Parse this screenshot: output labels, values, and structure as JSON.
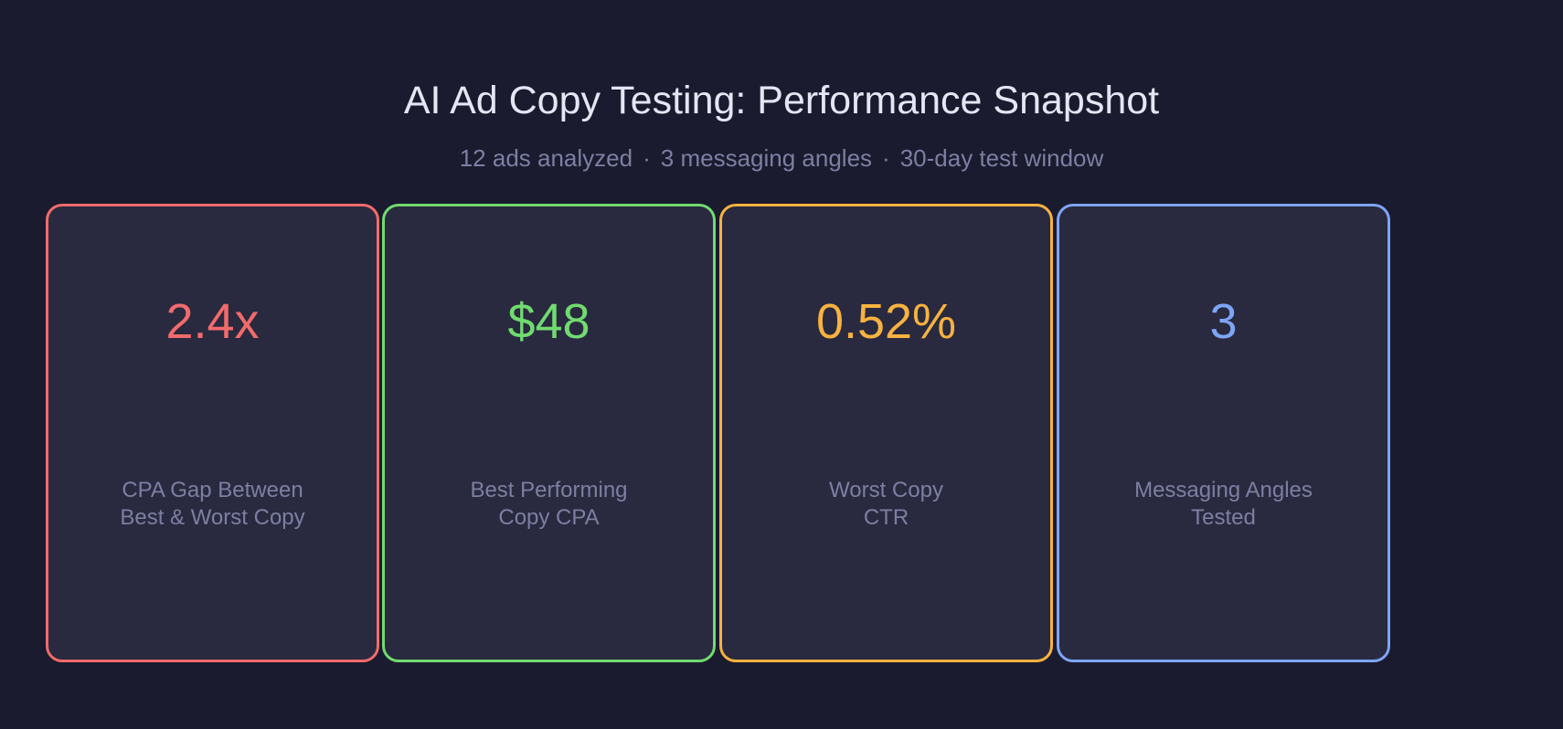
{
  "title": "AI Ad Copy Testing: Performance Snapshot",
  "subtitle": {
    "parts": [
      "12 ads analyzed",
      "3 messaging angles",
      "30-day test window"
    ],
    "separator": "·"
  },
  "cards": [
    {
      "value": "2.4x",
      "label_lines": [
        "CPA Gap Between",
        "Best & Worst Copy"
      ],
      "accent": "#f26b6b"
    },
    {
      "value": "$48",
      "label_lines": [
        "Best Performing",
        "Copy CPA"
      ],
      "accent": "#71db70"
    },
    {
      "value": "0.52%",
      "label_lines": [
        "Worst Copy",
        "CTR"
      ],
      "accent": "#f7b240"
    },
    {
      "value": "3",
      "label_lines": [
        "Messaging Angles",
        "Tested"
      ],
      "accent": "#7ea4f6"
    }
  ]
}
